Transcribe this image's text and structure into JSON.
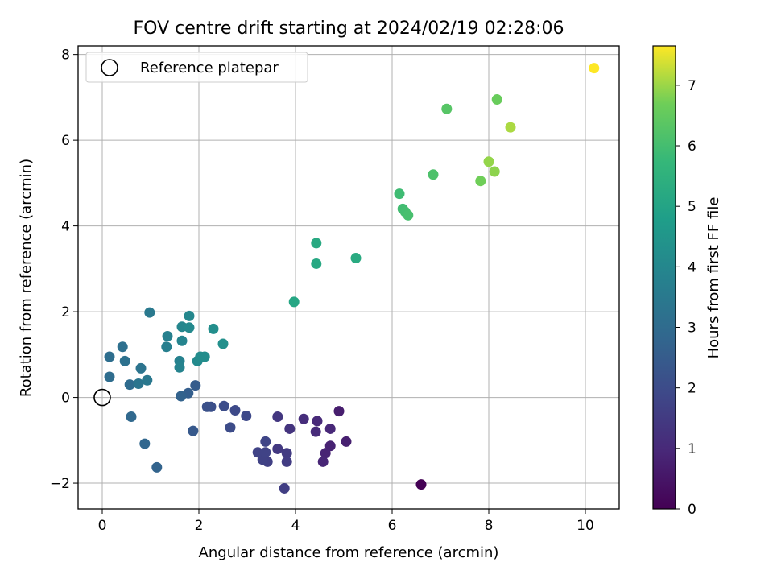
{
  "chart_data": {
    "type": "scatter",
    "title": "FOV centre drift starting at 2024/02/19 02:28:06",
    "xlabel": "Angular distance from reference (arcmin)",
    "ylabel": "Rotation from reference (arcmin)",
    "xlim": [
      -0.5,
      10.7
    ],
    "ylim": [
      -2.6,
      8.2
    ],
    "xticks": [
      0,
      2,
      4,
      6,
      8,
      10
    ],
    "yticks": [
      -2,
      0,
      2,
      4,
      6,
      8
    ],
    "xtick_labels": [
      "0",
      "2",
      "4",
      "6",
      "8",
      "10"
    ],
    "ytick_labels": [
      "−2",
      "0",
      "2",
      "4",
      "6",
      "8"
    ],
    "grid": true,
    "colormap": "viridis",
    "colorbar": {
      "label": "Hours from first FF file",
      "range": [
        0,
        7.65
      ],
      "ticks": [
        0,
        1,
        2,
        3,
        4,
        5,
        6,
        7
      ],
      "tick_labels": [
        "0",
        "1",
        "2",
        "3",
        "4",
        "5",
        "6",
        "7"
      ]
    },
    "legend": {
      "position": "top-left",
      "entries": [
        {
          "label": "Reference platepar",
          "marker": "open-circle"
        }
      ]
    },
    "reference_point": {
      "x": 0,
      "y": 0
    },
    "points": [
      {
        "x": 6.6,
        "y": -2.03,
        "t": 0.0
      },
      {
        "x": 4.9,
        "y": -0.32,
        "t": 0.7
      },
      {
        "x": 5.05,
        "y": -1.03,
        "t": 0.75
      },
      {
        "x": 4.72,
        "y": -1.13,
        "t": 0.8
      },
      {
        "x": 4.62,
        "y": -1.3,
        "t": 0.85
      },
      {
        "x": 4.57,
        "y": -1.5,
        "t": 0.9
      },
      {
        "x": 4.72,
        "y": -0.73,
        "t": 0.95
      },
      {
        "x": 4.45,
        "y": -0.55,
        "t": 1.0
      },
      {
        "x": 4.42,
        "y": -0.8,
        "t": 1.05
      },
      {
        "x": 4.17,
        "y": -0.5,
        "t": 1.1
      },
      {
        "x": 3.88,
        "y": -0.73,
        "t": 1.3
      },
      {
        "x": 3.63,
        "y": -0.45,
        "t": 1.4
      },
      {
        "x": 3.63,
        "y": -1.2,
        "t": 1.45
      },
      {
        "x": 3.82,
        "y": -1.3,
        "t": 1.5
      },
      {
        "x": 3.82,
        "y": -1.5,
        "t": 1.55
      },
      {
        "x": 3.77,
        "y": -2.12,
        "t": 1.6
      },
      {
        "x": 3.42,
        "y": -1.5,
        "t": 1.65
      },
      {
        "x": 3.32,
        "y": -1.45,
        "t": 1.7
      },
      {
        "x": 3.22,
        "y": -1.28,
        "t": 1.75
      },
      {
        "x": 3.38,
        "y": -1.28,
        "t": 1.75
      },
      {
        "x": 3.38,
        "y": -1.03,
        "t": 1.8
      },
      {
        "x": 2.98,
        "y": -0.43,
        "t": 1.9
      },
      {
        "x": 2.75,
        "y": -0.3,
        "t": 1.95
      },
      {
        "x": 2.65,
        "y": -0.7,
        "t": 2.0
      },
      {
        "x": 2.52,
        "y": -0.2,
        "t": 2.05
      },
      {
        "x": 2.25,
        "y": -0.22,
        "t": 2.1
      },
      {
        "x": 2.17,
        "y": -0.22,
        "t": 2.15
      },
      {
        "x": 1.88,
        "y": -0.78,
        "t": 2.4
      },
      {
        "x": 1.93,
        "y": 0.28,
        "t": 2.5
      },
      {
        "x": 1.78,
        "y": 0.1,
        "t": 2.6
      },
      {
        "x": 1.63,
        "y": 0.03,
        "t": 2.7
      },
      {
        "x": 1.13,
        "y": -1.63,
        "t": 2.75
      },
      {
        "x": 0.88,
        "y": -1.08,
        "t": 2.85
      },
      {
        "x": 0.6,
        "y": -0.45,
        "t": 2.9
      },
      {
        "x": 0.57,
        "y": 0.3,
        "t": 3.0
      },
      {
        "x": 0.15,
        "y": 0.48,
        "t": 3.05
      },
      {
        "x": 0.15,
        "y": 0.95,
        "t": 3.1
      },
      {
        "x": 0.42,
        "y": 1.18,
        "t": 3.15
      },
      {
        "x": 0.47,
        "y": 0.85,
        "t": 3.2
      },
      {
        "x": 0.8,
        "y": 0.68,
        "t": 3.3
      },
      {
        "x": 0.75,
        "y": 0.32,
        "t": 3.35
      },
      {
        "x": 0.93,
        "y": 0.4,
        "t": 3.45
      },
      {
        "x": 0.98,
        "y": 1.98,
        "t": 3.5
      },
      {
        "x": 1.33,
        "y": 1.18,
        "t": 3.7
      },
      {
        "x": 1.35,
        "y": 1.43,
        "t": 3.75
      },
      {
        "x": 1.6,
        "y": 0.85,
        "t": 3.8
      },
      {
        "x": 1.6,
        "y": 0.7,
        "t": 3.85
      },
      {
        "x": 1.65,
        "y": 1.32,
        "t": 3.9
      },
      {
        "x": 1.65,
        "y": 1.65,
        "t": 3.95
      },
      {
        "x": 1.8,
        "y": 1.9,
        "t": 4.0
      },
      {
        "x": 1.8,
        "y": 1.63,
        "t": 4.05
      },
      {
        "x": 1.97,
        "y": 0.85,
        "t": 4.1
      },
      {
        "x": 2.03,
        "y": 0.95,
        "t": 4.15
      },
      {
        "x": 2.12,
        "y": 0.95,
        "t": 4.2
      },
      {
        "x": 2.3,
        "y": 1.6,
        "t": 4.25
      },
      {
        "x": 2.5,
        "y": 1.25,
        "t": 4.3
      },
      {
        "x": 3.97,
        "y": 2.23,
        "t": 5.1
      },
      {
        "x": 4.43,
        "y": 3.12,
        "t": 5.15
      },
      {
        "x": 4.43,
        "y": 3.6,
        "t": 5.2
      },
      {
        "x": 5.25,
        "y": 3.25,
        "t": 5.25
      },
      {
        "x": 6.15,
        "y": 4.75,
        "t": 5.9
      },
      {
        "x": 6.22,
        "y": 4.4,
        "t": 5.95
      },
      {
        "x": 6.27,
        "y": 4.33,
        "t": 6.0
      },
      {
        "x": 6.33,
        "y": 4.25,
        "t": 6.05
      },
      {
        "x": 6.85,
        "y": 5.2,
        "t": 6.15
      },
      {
        "x": 7.13,
        "y": 6.73,
        "t": 6.3
      },
      {
        "x": 7.83,
        "y": 5.05,
        "t": 6.7
      },
      {
        "x": 8.0,
        "y": 5.5,
        "t": 6.95
      },
      {
        "x": 8.12,
        "y": 5.27,
        "t": 6.9
      },
      {
        "x": 8.17,
        "y": 6.95,
        "t": 6.6
      },
      {
        "x": 8.45,
        "y": 6.3,
        "t": 7.1
      },
      {
        "x": 10.18,
        "y": 7.68,
        "t": 7.65
      }
    ]
  }
}
